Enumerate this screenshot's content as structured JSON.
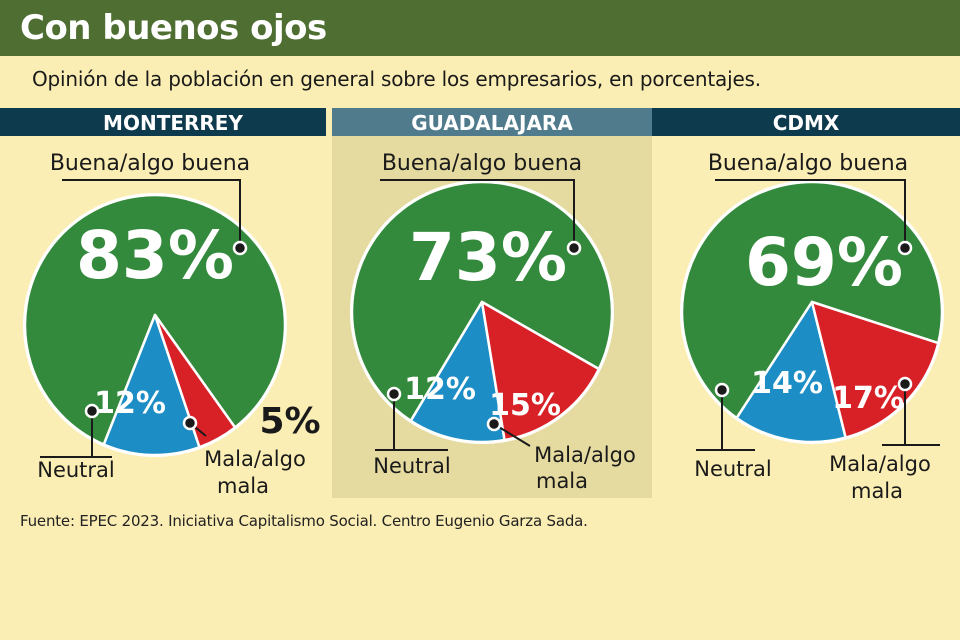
{
  "title": "Con buenos ojos",
  "subtitle": "Opinión de la población en general sobre los empresarios, en porcentajes.",
  "source": "Fuente: EPEC 2023. Iniciativa Capitalismo Social. Centro Eugenio Garza Sada.",
  "colors": {
    "title_bar": "#4e6e32",
    "header_bar": "#0e3a4e",
    "header_highlight": "#4f7b8c",
    "highlight_panel": "#e5dba0",
    "background": "#fbeeb4",
    "good": "#348a3c",
    "neutral": "#1d8dc6",
    "bad": "#d82027"
  },
  "chart_data": [
    {
      "type": "pie",
      "title": "MONTERREY",
      "categories": [
        "Buena/algo buena",
        "Neutral",
        "Mala/algo mala"
      ],
      "values": [
        83,
        12,
        5
      ],
      "labels": [
        "83%",
        "12%",
        "5%"
      ]
    },
    {
      "type": "pie",
      "title": "GUADALAJARA",
      "categories": [
        "Buena/algo buena",
        "Neutral",
        "Mala/algo mala"
      ],
      "values": [
        73,
        12,
        15
      ],
      "labels": [
        "73%",
        "12%",
        "15%"
      ],
      "highlighted": true
    },
    {
      "type": "pie",
      "title": "CDMX",
      "categories": [
        "Buena/algo buena",
        "Neutral",
        "Mala/algo mala"
      ],
      "values": [
        69,
        14,
        17
      ],
      "labels": [
        "69%",
        "14%",
        "17%"
      ]
    }
  ]
}
